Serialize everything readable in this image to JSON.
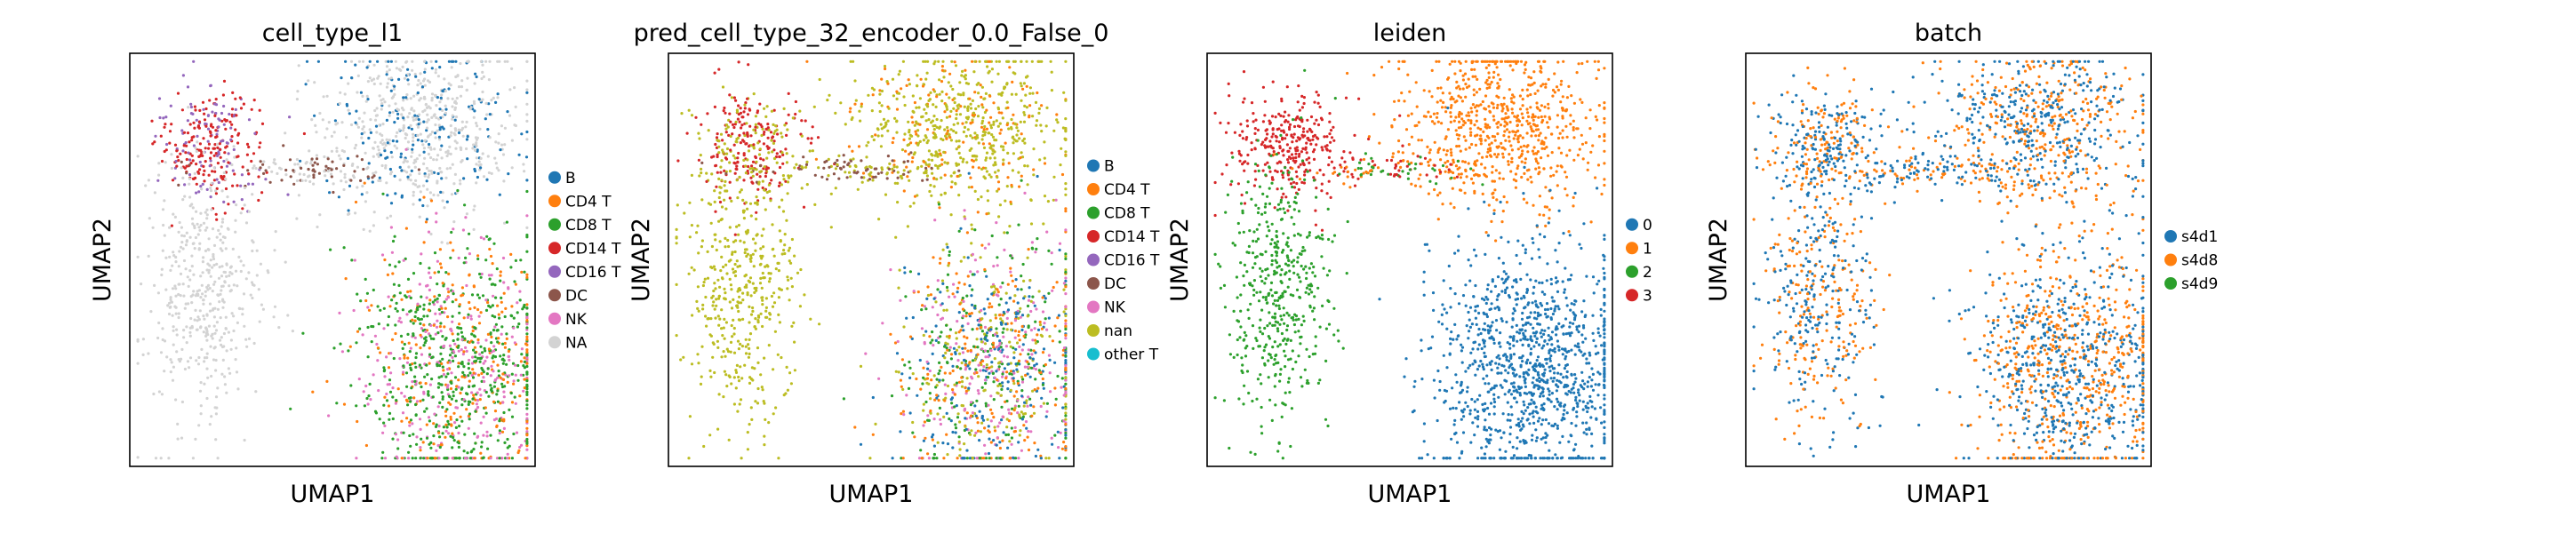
{
  "chart_data": [
    {
      "type": "scatter",
      "title": "cell_type_l1",
      "xlabel": "UMAP1",
      "ylabel": "UMAP2",
      "grid": false,
      "legend_position": "right",
      "legend": [
        {
          "label": "B",
          "color": "#1f77b4"
        },
        {
          "label": "CD4 T",
          "color": "#ff7f0e"
        },
        {
          "label": "CD8 T",
          "color": "#2ca02c"
        },
        {
          "label": "CD14 T",
          "color": "#d62728"
        },
        {
          "label": "CD16 T",
          "color": "#9467bd"
        },
        {
          "label": "DC",
          "color": "#8c564b"
        },
        {
          "label": "NK",
          "color": "#e377c2"
        },
        {
          "label": "NA",
          "color": "#d3d3d3"
        }
      ]
    },
    {
      "type": "scatter",
      "title": "pred_cell_type_32_encoder_0.0_False_0",
      "xlabel": "UMAP1",
      "ylabel": "UMAP2",
      "grid": false,
      "legend_position": "right",
      "legend": [
        {
          "label": "B",
          "color": "#1f77b4"
        },
        {
          "label": "CD4 T",
          "color": "#ff7f0e"
        },
        {
          "label": "CD8 T",
          "color": "#2ca02c"
        },
        {
          "label": "CD14 T",
          "color": "#d62728"
        },
        {
          "label": "CD16 T",
          "color": "#9467bd"
        },
        {
          "label": "DC",
          "color": "#8c564b"
        },
        {
          "label": "NK",
          "color": "#e377c2"
        },
        {
          "label": "nan",
          "color": "#bcbd22"
        },
        {
          "label": "other T",
          "color": "#17becf"
        }
      ]
    },
    {
      "type": "scatter",
      "title": "leiden",
      "xlabel": "UMAP1",
      "ylabel": "UMAP2",
      "grid": false,
      "legend_position": "right",
      "legend": [
        {
          "label": "0",
          "color": "#1f77b4"
        },
        {
          "label": "1",
          "color": "#ff7f0e"
        },
        {
          "label": "2",
          "color": "#2ca02c"
        },
        {
          "label": "3",
          "color": "#d62728"
        }
      ]
    },
    {
      "type": "scatter",
      "title": "batch",
      "xlabel": "UMAP1",
      "ylabel": "UMAP2",
      "grid": false,
      "legend_position": "right",
      "legend": [
        {
          "label": "s4d1",
          "color": "#1f77b4"
        },
        {
          "label": "s4d8",
          "color": "#ff7f0e"
        },
        {
          "label": "s4d9",
          "color": "#2ca02c"
        }
      ]
    }
  ]
}
